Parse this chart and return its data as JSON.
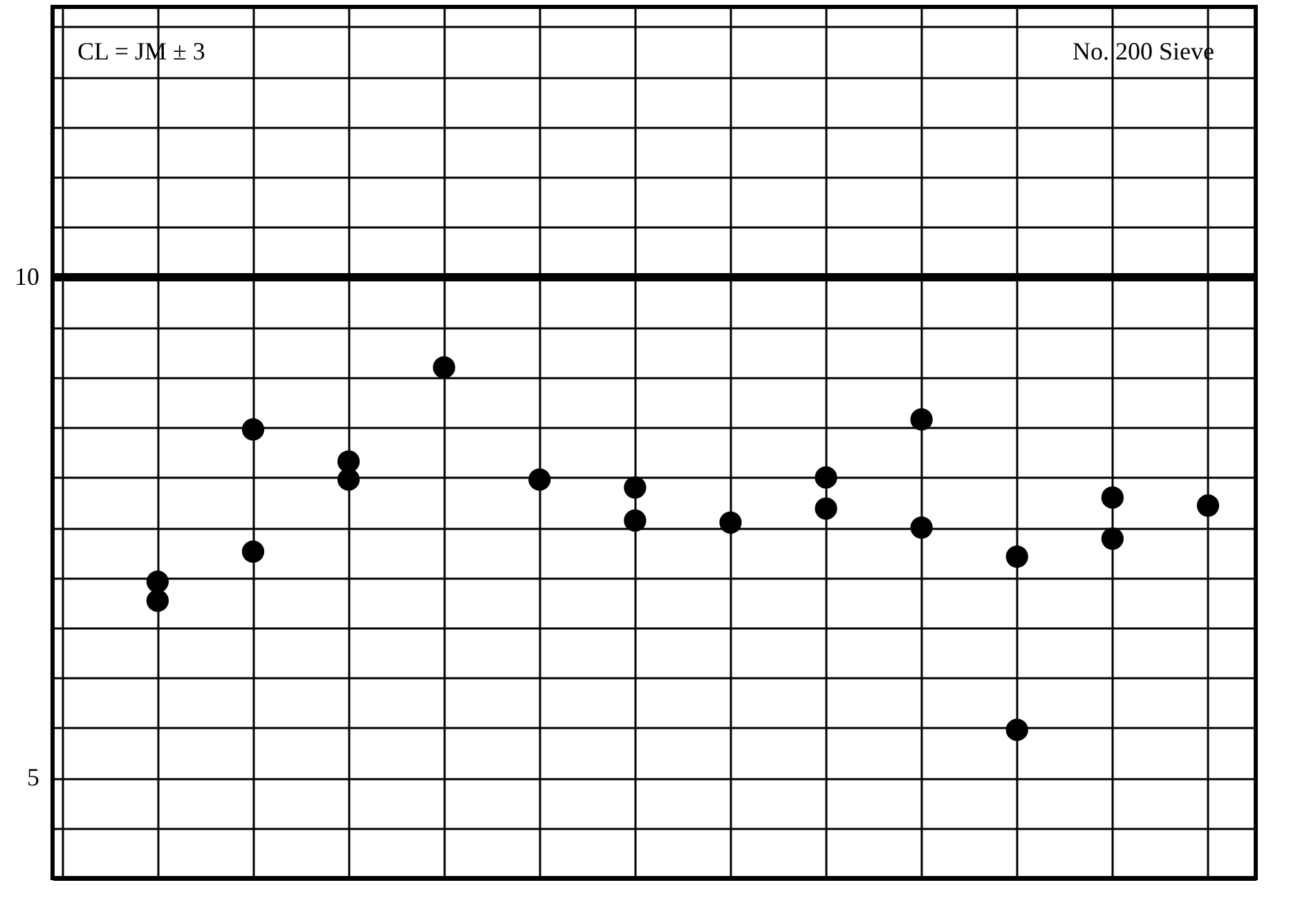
{
  "chart_data": {
    "type": "scatter",
    "categories": [
      null,
      null,
      null,
      null,
      null,
      null,
      null,
      null,
      null,
      null,
      null,
      null,
      null
    ],
    "series": [
      {
        "color": "#000000",
        "values": [
          null,
          6.96,
          8.48,
          8.16,
          9.1,
          7.98,
          7.9,
          7.55,
          8.0,
          8.58,
          7.21,
          7.8,
          7.72
        ]
      },
      {
        "color": "#000000",
        "values": [
          null,
          6.77,
          7.26,
          7.98,
          null,
          null,
          7.57,
          null,
          7.69,
          7.5,
          5.48,
          7.39,
          null
        ]
      }
    ],
    "ylim": [
      4,
      12.7
    ],
    "yticks": [
      {
        "value": 4.5,
        "label": null
      },
      5,
      {
        "value": 5.5,
        "label": null
      },
      {
        "value": 6,
        "label": null
      },
      {
        "value": 6.5,
        "label": null
      },
      {
        "value": 7,
        "label": null
      },
      {
        "value": 7.5,
        "label": null
      },
      {
        "value": 8,
        "label": null
      },
      {
        "value": 8.5,
        "label": null
      },
      {
        "value": 9,
        "label": null
      },
      {
        "value": 9.5,
        "label": null
      },
      10,
      {
        "value": 10.5,
        "label": null
      },
      {
        "value": 11,
        "label": null
      },
      {
        "value": 11.5,
        "label": null
      },
      {
        "value": 12,
        "label": null
      },
      {
        "value": 12.5,
        "label": null
      }
    ],
    "ref_lines": [
      {
        "axis": "y",
        "value": 10,
        "color": "#000000"
      }
    ],
    "annotations": [
      "CL  = JM ± 3",
      "No. 200 Sieve"
    ],
    "grid": true,
    "marker": "circle"
  }
}
